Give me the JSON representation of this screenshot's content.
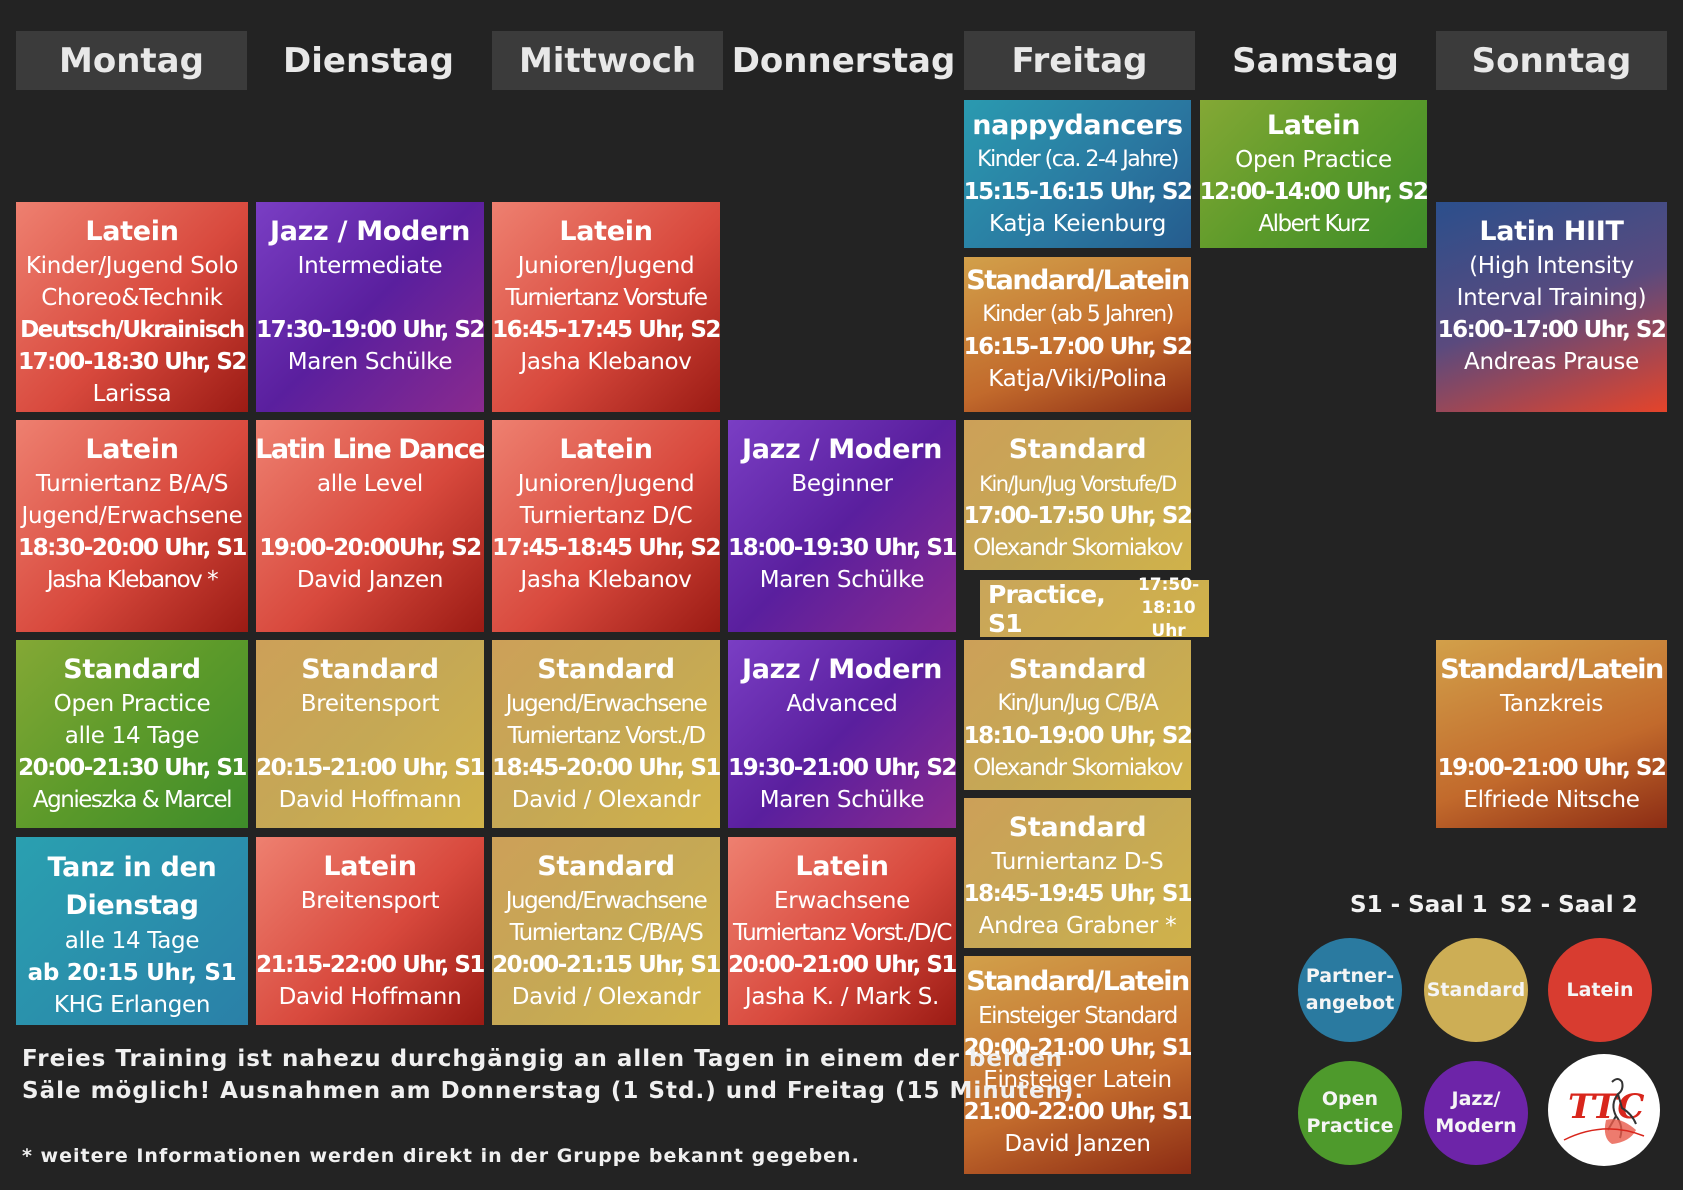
{
  "days": [
    "Montag",
    "Dienstag",
    "Mittwoch",
    "Donnerstag",
    "Freitag",
    "Samstag",
    "Sonntag"
  ],
  "cards": {
    "mo1": [
      "Latein",
      "Kinder/Jugend Solo",
      "Choreo&Technik",
      "Deutsch/Ukrainisch",
      "17:00-18:30 Uhr, S2",
      "Larissa"
    ],
    "mo2": [
      "Latein",
      "Turniertanz B/A/S",
      "Jugend/Erwachsene",
      "18:30-20:00 Uhr, S1",
      "Jasha Klebanov *"
    ],
    "mo3": [
      "Standard",
      "Open Practice",
      "alle 14 Tage",
      "20:00-21:30 Uhr, S1",
      "Agnieszka & Marcel"
    ],
    "mo4": [
      "Tanz in den",
      "Dienstag",
      "alle 14 Tage",
      "ab 20:15 Uhr, S1",
      "KHG Erlangen"
    ],
    "di1": [
      "Jazz / Modern",
      "Intermediate",
      "17:30-19:00 Uhr, S2",
      "Maren Schülke"
    ],
    "di2": [
      "Latin Line Dance",
      "alle Level",
      "19:00-20:00Uhr, S2",
      "David Janzen"
    ],
    "di3": [
      "Standard",
      "Breitensport",
      "20:15-21:00 Uhr, S1",
      "David Hoffmann"
    ],
    "di4": [
      "Latein",
      "Breitensport",
      "21:15-22:00 Uhr, S1",
      "David Hoffmann"
    ],
    "mi1": [
      "Latein",
      "Junioren/Jugend",
      "Turniertanz Vorstufe",
      "16:45-17:45 Uhr, S2",
      "Jasha Klebanov"
    ],
    "mi2": [
      "Latein",
      "Junioren/Jugend",
      "Turniertanz D/C",
      "17:45-18:45 Uhr, S2",
      "Jasha Klebanov"
    ],
    "mi3": [
      "Standard",
      "Jugend/Erwachsene",
      "Turniertanz Vorst./D",
      "18:45-20:00 Uhr, S1",
      "David / Olexandr"
    ],
    "mi4": [
      "Standard",
      "Jugend/Erwachsene",
      "Turniertanz C/B/A/S",
      "20:00-21:15 Uhr, S1",
      "David / Olexandr"
    ],
    "do1": [
      "Jazz / Modern",
      "Beginner",
      "18:00-19:30 Uhr, S1",
      "Maren Schülke"
    ],
    "do2": [
      "Jazz / Modern",
      "Advanced",
      "19:30-21:00 Uhr, S2",
      "Maren Schülke"
    ],
    "do3": [
      "Latein",
      "Erwachsene",
      "Turniertanz Vorst./D/C",
      "20:00-21:00 Uhr, S1",
      "Jasha K. / Mark S."
    ],
    "fr1": [
      "nappydancers",
      "Kinder (ca. 2-4 Jahre)",
      "15:15-16:15 Uhr, S2",
      "Katja Keienburg"
    ],
    "fr2": [
      "Standard/Latein",
      "Kinder (ab 5 Jahren)",
      "16:15-17:00 Uhr, S2",
      "Katja/Viki/Polina"
    ],
    "fr3": [
      "Standard",
      "Kin/Jun/Jug Vorstufe/D",
      "17:00-17:50 Uhr, S2",
      "Olexandr Skorniakov"
    ],
    "fr4": [
      "Standard",
      "Kin/Jun/Jug C/B/A",
      "18:10-19:00 Uhr, S2",
      "Olexandr Skorniakov"
    ],
    "fr5": [
      "Standard",
      "Turniertanz D-S",
      "18:45-19:45 Uhr, S1",
      "Andrea Grabner *"
    ],
    "fr6": [
      "Standard/Latein",
      "Einsteiger Standard",
      "20:00-21:00 Uhr, S1",
      "Einsteiger Latein",
      "21:00-22:00 Uhr, S1",
      "David Janzen"
    ],
    "sa1": [
      "Latein",
      "Open Practice",
      "12:00-14:00 Uhr, S2",
      "Albert Kurz"
    ],
    "so1": [
      "Latin HIIT",
      "(High Intensity",
      "Interval Training)",
      "16:00-17:00 Uhr, S2",
      "Andreas Prause"
    ],
    "so2": [
      "Standard/Latein",
      "Tanzkreis",
      "19:00-21:00 Uhr, S2",
      "Elfriede Nitsche"
    ]
  },
  "practice": {
    "label": "Practice, S1",
    "time_top": "17:50-",
    "time_bottom": "18:10 Uhr"
  },
  "notes": {
    "free_line1": "Freies Training ist nahezu durchgängig an allen Tagen in einem der beiden",
    "free_line2": "Säle möglich! Ausnahmen am Donnerstag (1 Std.) und Freitag (15 Minuten).",
    "footnote": "* weitere Informationen werden direkt in der Gruppe bekannt gegeben."
  },
  "legend": {
    "s1": "S1 - Saal 1",
    "s2": "S2 - Saal 2",
    "partner_line1": "Partner-",
    "partner_line2": "angebot",
    "standard": "Standard",
    "latein": "Latein",
    "open_line1": "Open",
    "open_line2": "Practice",
    "jazz_line1": "Jazz/",
    "jazz_line2": "Modern",
    "logo_text": "TTC"
  },
  "colors": {
    "latein": "#d83c30",
    "standard": "#cdae55",
    "jazz": "#6d24a8",
    "open_practice": "#4e9a2c",
    "partner": "#2a7aa0",
    "background": "#232323"
  }
}
